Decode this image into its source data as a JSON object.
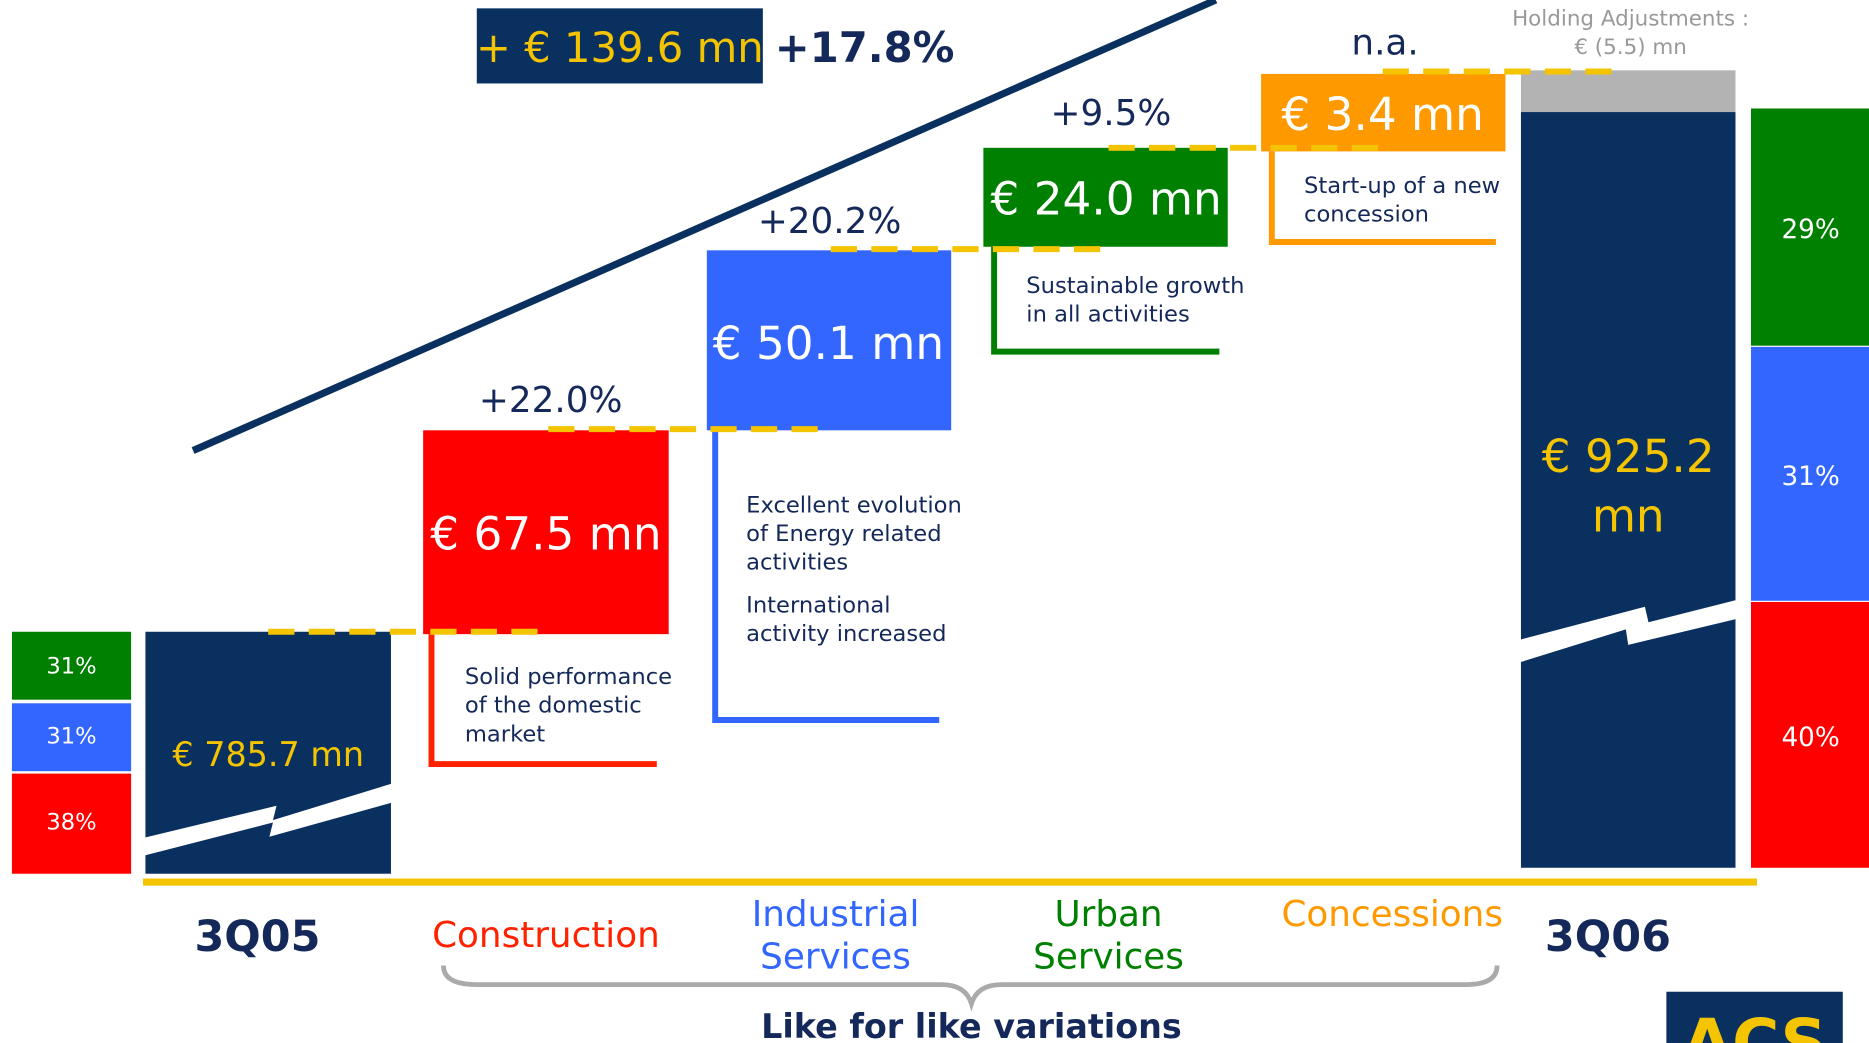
{
  "total_change": {
    "amount": "+ € 139.6 mn",
    "percent": "+17.8%"
  },
  "start": {
    "label": "3Q05",
    "value": "€ 785.7 mn",
    "mix": [
      "31%",
      "31%",
      "38%"
    ]
  },
  "steps": [
    {
      "category": [
        "Construction"
      ],
      "value": "€ 67.5 mn",
      "growth": "+22.0%",
      "notes": [
        [
          "Solid performance",
          "of the domestic",
          "market"
        ]
      ]
    },
    {
      "category": [
        "Industrial",
        "Services"
      ],
      "value": "€ 50.1 mn",
      "growth": "+20.2%",
      "notes": [
        [
          "Excellent evolution",
          "of Energy related",
          "activities"
        ],
        [
          "International",
          "activity increased"
        ]
      ]
    },
    {
      "category": [
        "Urban",
        "Services"
      ],
      "value": "€ 24.0 mn",
      "growth": "+9.5%",
      "notes": [
        [
          "Sustainable growth",
          "in all activities"
        ]
      ]
    },
    {
      "category": [
        "Concessions"
      ],
      "value": "€ 3.4 mn",
      "growth": "n.a.",
      "notes": [
        [
          "Start-up of a new",
          "concession"
        ]
      ]
    }
  ],
  "holding_adjustments": [
    "Holding Adjustments :",
    "€ (5.5) mn"
  ],
  "end": {
    "label": "3Q06",
    "value": [
      "€ 925.2",
      "mn"
    ],
    "mix": [
      "29%",
      "31%",
      "40%"
    ]
  },
  "brace_label": "Like for like variations",
  "logo": "ACS"
}
